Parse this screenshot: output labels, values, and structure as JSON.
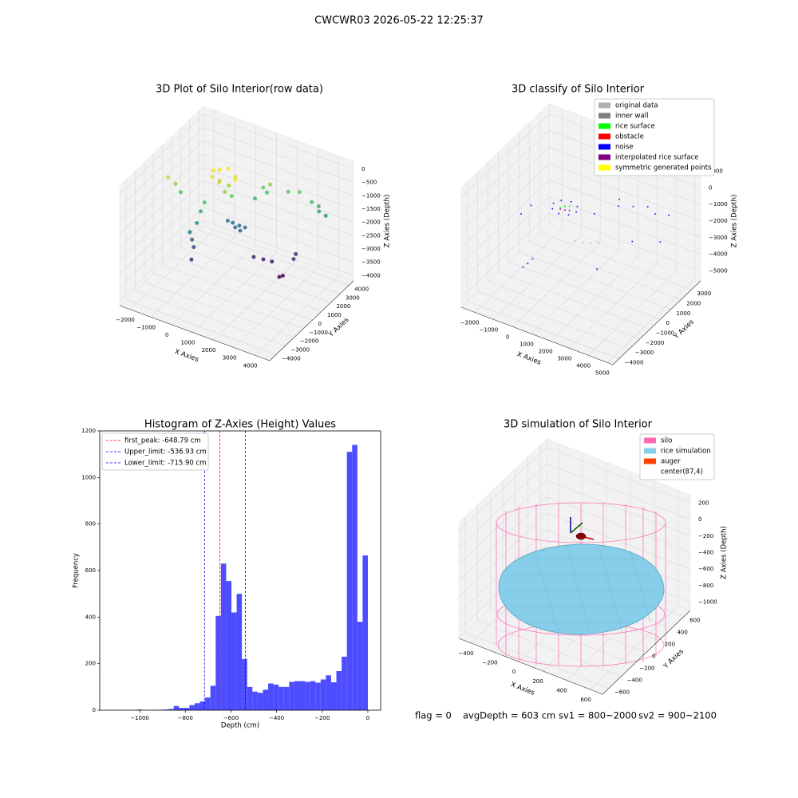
{
  "title": "CWCWR03 2026-05-22 12:25:37",
  "chart_data": [
    {
      "type": "scatter3d",
      "title": "3D Plot of Silo Interior(row data)",
      "xlabel": "X Axies",
      "ylabel": "Y Axies",
      "zlabel": "Z Axies (Depth)",
      "xlim": [
        -2500,
        4700
      ],
      "ylim": [
        -4700,
        4500
      ],
      "zlim": [
        -4200,
        300
      ],
      "xticks": [
        {
          "value": -2000,
          "label": "−2000"
        },
        {
          "value": -1000,
          "label": "−1000"
        },
        0,
        1000,
        2000,
        3000,
        4000
      ],
      "yticks": [
        {
          "value": -4000,
          "label": "−4000"
        },
        {
          "value": -3000,
          "label": "−3000"
        },
        {
          "value": -2000,
          "label": "−2000"
        },
        {
          "value": -1000,
          "label": "−1000"
        },
        0,
        1000,
        2000,
        3000,
        4000
      ],
      "zticks": [
        0,
        {
          "value": -500,
          "label": "−500"
        },
        {
          "value": -1000,
          "label": "−1000"
        },
        {
          "value": -1500,
          "label": "−1500"
        },
        {
          "value": -2000,
          "label": "−2000"
        },
        {
          "value": -2500,
          "label": "−2500"
        },
        {
          "value": -3000,
          "label": "−3000"
        },
        {
          "value": -3500,
          "label": "−3500"
        },
        {
          "value": -4000,
          "label": "−4000"
        }
      ],
      "grid": true,
      "colormap": "viridis",
      "series": [
        {
          "x": [
            -500,
            -350,
            0,
            400,
            550,
            400,
            0,
            -400,
            -200,
            200,
            100,
            300,
            -1040,
            -916,
            -1000,
            -1100,
            -900,
            -800,
            -700,
            -1900,
            -2100,
            -1800,
            280,
            0,
            500,
            200,
            -200,
            400,
            3300,
            3000,
            3500,
            2500,
            3200,
            2000,
            1080,
            1400,
            800,
            1200,
            1374,
            1000,
            1700,
            2275,
            2400,
            2700,
            2500
          ],
          "y": [
            1000,
            1350,
            1500,
            1350,
            1000,
            650,
            500,
            650,
            1000,
            1100,
            900,
            1200,
            -100,
            -450,
            0,
            -200,
            100,
            300,
            500,
            60,
            -300,
            400,
            2070,
            2000,
            2200,
            1800,
            1900,
            1900,
            3910,
            3800,
            4200,
            3600,
            4100,
            3500,
            2870,
            2900,
            2600,
            3000,
            2210,
            2000,
            2400,
            1900,
            2000,
            2500,
            3200
          ],
          "z": [
            -400,
            -450,
            -350,
            -500,
            -450,
            -600,
            -550,
            -500,
            -700,
            -800,
            -1000,
            -1200,
            -2800,
            -3400,
            -3100,
            -2500,
            -2200,
            -1800,
            -1500,
            -1000,
            -700,
            -1400,
            -2600,
            -2550,
            -2650,
            -2600,
            -2500,
            -2700,
            -1800,
            -1500,
            -2000,
            -1200,
            -1700,
            -1300,
            -1200,
            -1000,
            -1600,
            -1400,
            -3600,
            -3550,
            -3650,
            -3900,
            -3850,
            -3300,
            -3400
          ]
        }
      ]
    },
    {
      "type": "scatter3d",
      "title": "3D classify of Silo Interior",
      "xlabel": "X Axies",
      "ylabel": "Y Axies",
      "zlabel": "Z Axies (Depth)",
      "xlim": [
        -2700,
        5300
      ],
      "ylim": [
        -4600,
        3900
      ],
      "zlim": [
        -5600,
        1600
      ],
      "xticks": [
        {
          "value": -2000,
          "label": "−2000"
        },
        {
          "value": -1000,
          "label": "−1000"
        },
        0,
        1000,
        2000,
        3000,
        4000,
        5000
      ],
      "yticks": [
        {
          "value": -4000,
          "label": "−4000"
        },
        {
          "value": -3000,
          "label": "−3000"
        },
        {
          "value": -2000,
          "label": "−2000"
        },
        {
          "value": -1000,
          "label": "−1000"
        },
        0,
        1000,
        2000,
        3000
      ],
      "zticks": [
        1000,
        0,
        {
          "value": -1000,
          "label": "−1000"
        },
        {
          "value": -2000,
          "label": "−2000"
        },
        {
          "value": -3000,
          "label": "−3000"
        },
        {
          "value": -4000,
          "label": "−4000"
        },
        {
          "value": -5000,
          "label": "−5000"
        }
      ],
      "grid": true,
      "series": [
        {
          "name": "original data",
          "color": "#b0b0b0",
          "x": [
            1500,
            1800,
            1200,
            2000
          ],
          "y": [
            -500,
            -300,
            -700,
            0
          ],
          "z": [
            -2300,
            -2350,
            -2250,
            -2400
          ]
        },
        {
          "name": "inner wall",
          "color": "#808080",
          "x": [],
          "y": [],
          "z": []
        },
        {
          "name": "rice surface",
          "color": "#00ff00",
          "x": [
            300,
            450,
            150,
            350
          ],
          "y": [
            -70,
            100,
            -250,
            -150
          ],
          "z": [
            -900,
            -950,
            -950,
            -850
          ]
        },
        {
          "name": "obstacle",
          "color": "#ff0000",
          "x": [],
          "y": [],
          "z": []
        },
        {
          "name": "noise",
          "color": "#0000ff",
          "x": [
            900,
            725,
            300,
            -125,
            -300,
            -125,
            300,
            725,
            2500,
            3000,
            3500,
            4000,
            2000,
            -532,
            -700,
            -400,
            -1500,
            -1200,
            1000,
            2500,
            3000,
            1500,
            4200
          ],
          "y": [
            -70,
            355,
            530,
            355,
            -70,
            -495,
            -670,
            -495,
            2500,
            3000,
            2800,
            3200,
            2000,
            -2135,
            -2300,
            -1900,
            -1000,
            -600,
            1500,
            -1000,
            1500,
            3000,
            2000
          ],
          "z": [
            -1000,
            -1000,
            -1000,
            -1000,
            -1000,
            -1000,
            -1000,
            -1000,
            -1500,
            -1600,
            -1700,
            -1800,
            -1400,
            -3500,
            -3700,
            -3300,
            -1600,
            -1200,
            -2000,
            -3200,
            -2800,
            -1800,
            -2600
          ]
        },
        {
          "name": "interpolated rice surface",
          "color": "#800080",
          "x": [
            300,
            500,
            100
          ],
          "y": [
            -70,
            0,
            -150
          ],
          "z": [
            -1150,
            -1120,
            -1120
          ]
        },
        {
          "name": "symmetric generated points",
          "color": "#ffff00",
          "x": [],
          "y": [],
          "z": []
        }
      ]
    },
    {
      "type": "histogram",
      "title": "Histogram of Z-Axies (Height) Values",
      "xlabel": "Depth (cm)",
      "ylabel": "Frequency",
      "color": "#4d4dff",
      "xlim": [
        -1175,
        56
      ],
      "ylim": [
        0,
        1200
      ],
      "xticks": [
        {
          "value": -1000,
          "label": "−1000"
        },
        {
          "value": -800,
          "label": "−800"
        },
        {
          "value": -600,
          "label": "−600"
        },
        {
          "value": -400,
          "label": "−400"
        },
        {
          "value": -200,
          "label": "−200"
        },
        0
      ],
      "yticks": [
        0,
        200,
        400,
        600,
        800,
        1000,
        1200
      ],
      "bins": [
        -1150,
        -1127,
        -1104,
        -1081,
        -1058,
        -1035,
        -1012,
        -989,
        -966,
        -943,
        -920,
        -897,
        -874,
        -851,
        -828,
        -805,
        -782,
        -759,
        -736,
        -713,
        -690,
        -667,
        -644,
        -621,
        -598,
        -575,
        -552,
        -529,
        -506,
        -483,
        -460,
        -437,
        -414,
        -391,
        -368,
        -345,
        -322,
        -299,
        -276,
        -253,
        -230,
        -207,
        -184,
        -161,
        -138,
        -115,
        -92,
        -69,
        -46,
        -23,
        0
      ],
      "values": [
        0,
        0,
        0,
        0,
        0,
        0,
        3,
        0,
        0,
        1,
        2,
        3,
        5,
        18,
        10,
        10,
        22,
        30,
        38,
        55,
        105,
        405,
        630,
        555,
        420,
        500,
        220,
        100,
        80,
        75,
        88,
        115,
        110,
        100,
        100,
        122,
        125,
        125,
        122,
        125,
        118,
        132,
        150,
        120,
        168,
        230,
        1110,
        1140,
        380,
        665
      ],
      "vlines": [
        {
          "name": "first_peak: -648.79 cm",
          "value": -648.79,
          "color": "#ff0000"
        },
        {
          "name": "Upper_limit: -536.93 cm",
          "value": -536.93,
          "color": "#0000ff"
        },
        {
          "name": "Lower_limit: -715.90 cm",
          "value": -715.9,
          "color": "#0000ff"
        }
      ]
    },
    {
      "type": "surface3d",
      "title": "3D simulation of Silo Interior",
      "xlabel": "X Axies",
      "ylabel": "Y Axies",
      "zlabel": "Z Axies (Depth)",
      "xlim": [
        -500,
        700
      ],
      "ylim": [
        -700,
        700
      ],
      "zlim": [
        -1100,
        300
      ],
      "xticks": [
        {
          "value": -400,
          "label": "−400"
        },
        {
          "value": -200,
          "label": "−200"
        },
        0,
        200,
        400,
        600
      ],
      "yticks": [
        {
          "value": -600,
          "label": "−600"
        },
        {
          "value": -400,
          "label": "−400"
        },
        {
          "value": -200,
          "label": "−200"
        },
        0,
        200,
        400,
        600
      ],
      "zticks": [
        200,
        0,
        {
          "value": -200,
          "label": "−200"
        },
        {
          "value": -400,
          "label": "−400"
        },
        {
          "value": -600,
          "label": "−600"
        },
        {
          "value": -800,
          "label": "−800"
        },
        {
          "value": -1000,
          "label": "−1000"
        }
      ],
      "grid": true,
      "series": [
        {
          "name": "silo",
          "color": "#ff69b4"
        },
        {
          "name": "rice simulation",
          "color": "#87ceeb"
        },
        {
          "name": "auger",
          "color": "#ff4500"
        },
        {
          "name": "center(87,4)",
          "color": "#ffffff"
        }
      ],
      "annotations": [
        "flag = 0",
        "avgDepth = 603 cm",
        "sv1 = 800~2000",
        "sv2 = 900~2100"
      ]
    }
  ]
}
